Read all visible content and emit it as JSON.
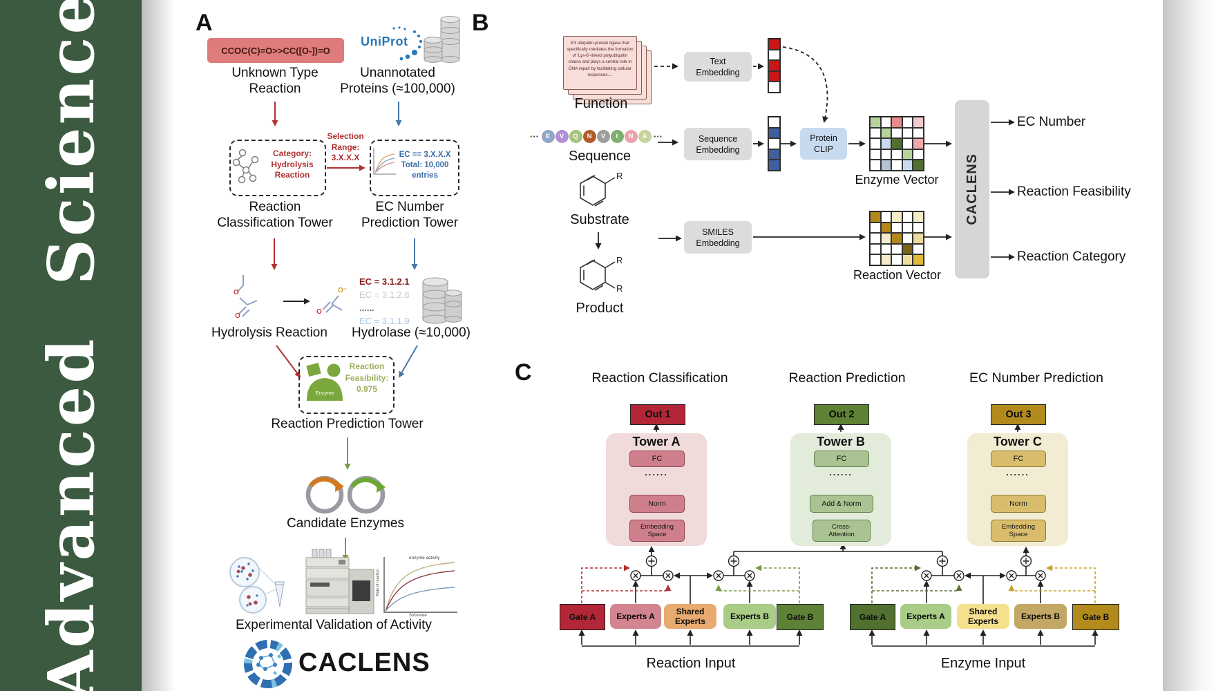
{
  "journal": {
    "name": "Advanced Science"
  },
  "colors": {
    "banner_green": "#3b5a40",
    "smiles_red": "#de7b7b",
    "arrow_red": "#b03030",
    "arrow_blue": "#4878a8",
    "arrow_olive": "#7a9a4a",
    "uniprot_blue": "#2878b8",
    "out1": "#b32638",
    "out2": "#5f8136",
    "out3": "#b38b1d",
    "tower_a_bg": "#f0dada",
    "tower_b_bg": "#e3ecdb",
    "tower_c_bg": "#f2ecd2",
    "protein_clip_bg": "#c7daf0",
    "embedding_box_bg": "#dcdcdc"
  },
  "panel_a": {
    "label": "A",
    "smiles": "CCOC(C)=O>>CC([O-])=O",
    "unknown_reaction": "Unknown Type\nReaction",
    "uniprot": "UniProt",
    "unannotated": "Unannotated\nProteins (≈100,000)",
    "category_note": "Category:\nHydrolysis\nReaction",
    "selection_note": "Selection\nRange:\n3.X.X.X",
    "ec_note": "EC == 3.X.X.X\nTotal: 10,000\nentries",
    "classification_tower": "Reaction\nClassification Tower",
    "ec_tower": "EC Number\nPrediction Tower",
    "hydrolysis_label": "Hydrolysis Reaction",
    "ec_list": [
      {
        "text": "EC = 3.1.2.1",
        "color": "#8b1a1a",
        "bold": true
      },
      {
        "text": "EC = 3.1.2.6",
        "color": "#c8c8c8",
        "bold": false
      },
      {
        "text": "......",
        "color": "#666666",
        "bold": true
      },
      {
        "text": "EC = 3.1.1.9",
        "color": "#aac6e0",
        "bold": false
      }
    ],
    "hydrolase_label": "Hydrolase (≈10,000)",
    "enzyme_icon_label": "Enzyme",
    "feasibility_note": "Reaction\nFeasibility:\n0.975",
    "prediction_tower": "Reaction Prediction Tower",
    "candidate_label": "Candidate Enzymes",
    "activity_graph": {
      "title": "enzyme activity",
      "ylabel": "Rate of reaction",
      "xlabel": "Substrate"
    },
    "validation_label": "Experimental Validation of Activity",
    "logo_text": "CACLENS",
    "atom_o": "O",
    "atom_o_minus": "O⁻"
  },
  "panel_b": {
    "label": "B",
    "function_card_text": "E3 ubiquitin-protein ligase that specifically mediates the formation of 'Lys-6'-linked polyubiquitin chains and plays a central role in DNA repair by facilitating cellular responses....",
    "function_label": "Function",
    "ellipsis": "···",
    "residues": [
      {
        "letter": "E",
        "color": "#8fa6c6"
      },
      {
        "letter": "V",
        "color": "#b18fd6"
      },
      {
        "letter": "Q",
        "color": "#a6c17c"
      },
      {
        "letter": "N",
        "color": "#b25a28"
      },
      {
        "letter": "V",
        "color": "#9d9d9d"
      },
      {
        "letter": "I",
        "color": "#7fae6e"
      },
      {
        "letter": "N",
        "color": "#e9a3aa"
      },
      {
        "letter": "A",
        "color": "#c6d49b"
      }
    ],
    "sequence_label": "Sequence",
    "substrate_label": "Substrate",
    "product_label": "Product",
    "r_label": "R",
    "text_embedding": "Text\nEmbedding",
    "sequence_embedding": "Sequence\nEmbedding",
    "smiles_embedding": "SMILES\nEmbedding",
    "protein_clip": "Protein\nCLIP",
    "text_vector": [
      "#cc1515",
      "#ffffff",
      "#cc1515",
      "#cc1515",
      "#ffffff"
    ],
    "sequence_vector": [
      "#ffffff",
      "#3f5f9e",
      "#ffffff",
      "#3f5f9e",
      "#3f5f9e"
    ],
    "enzyme_vector": {
      "label": "Enzyme Vector",
      "cells": [
        [
          "#b5d49a",
          "#ffffff",
          "#e88a8a",
          "#ffffff",
          "#f2c9cc"
        ],
        [
          "#ffffff",
          "#b5d49a",
          "#ffffff",
          "#ffffff",
          "#ffffff"
        ],
        [
          "#ffffff",
          "#c9daf0",
          "#4f7030",
          "#ffffff",
          "#f0a8ad"
        ],
        [
          "#ffffff",
          "#ffffff",
          "#ffffff",
          "#b5d49a",
          "#ffffff"
        ],
        [
          "#ffffff",
          "#b4c2d4",
          "#ffffff",
          "#c9daf0",
          "#4f7030"
        ]
      ]
    },
    "reaction_vector": {
      "label": "Reaction Vector",
      "cells": [
        [
          "#b3871b",
          "#ffffff",
          "#f5ecc8",
          "#ffffff",
          "#f5ecc8"
        ],
        [
          "#ffffff",
          "#b3871b",
          "#ffffff",
          "#ffffff",
          "#ffffff"
        ],
        [
          "#ffffff",
          "#f5ecc8",
          "#b3871b",
          "#ffffff",
          "#ecd9a0"
        ],
        [
          "#ffffff",
          "#ffffff",
          "#ffffff",
          "#7a6414",
          "#ffffff"
        ],
        [
          "#ffffff",
          "#f5ecc8",
          "#ffffff",
          "#f0e0a0",
          "#e0b83a"
        ]
      ]
    },
    "caclens_label": "CACLENS",
    "outputs": [
      "EC Number",
      "Reaction Feasibility",
      "Reaction Category"
    ]
  },
  "panel_c": {
    "label": "C",
    "columns": [
      {
        "title": "Reaction Classification",
        "out": "Out 1",
        "tower": "Tower A",
        "layers": [
          "FC",
          "......",
          "Norm",
          "Embedding\nSpace"
        ]
      },
      {
        "title": "Reaction Prediction",
        "out": "Out 2",
        "tower": "Tower B",
        "layers": [
          "FC",
          "......",
          "Add & Norm",
          "Cross-\nAttention"
        ]
      },
      {
        "title": "EC Number Prediction",
        "out": "Out 3",
        "tower": "Tower C",
        "layers": [
          "FC",
          "......",
          "Norm",
          "Embedding\nSpace"
        ]
      }
    ],
    "groups": [
      {
        "input": "Reaction Input",
        "boxes": [
          "Gate A",
          "Experts A",
          "Shared\nExperts",
          "Experts B",
          "Gate B"
        ]
      },
      {
        "input": "Enzyme Input",
        "boxes": [
          "Gate A",
          "Experts A",
          "Shared\nExperts",
          "Experts B",
          "Gate B"
        ]
      }
    ]
  }
}
